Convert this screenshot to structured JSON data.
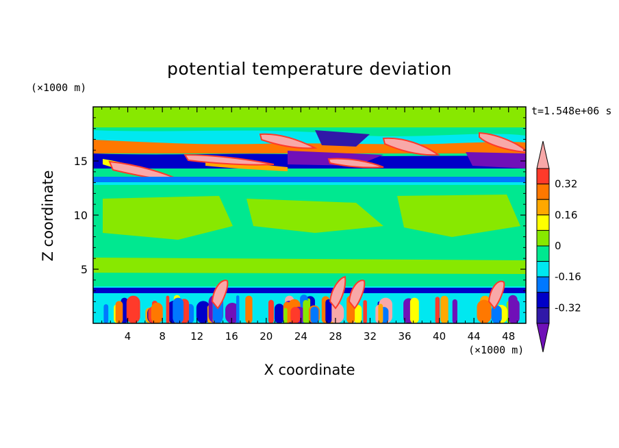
{
  "chart_data": {
    "type": "heatmap",
    "title": "potential temperature deviation",
    "xlabel": "X coordinate",
    "ylabel": "Z coordinate",
    "x_unit": "(×1000 m)",
    "y_unit": "(×1000 m)",
    "time_label": "t=1.548e+06 s",
    "xlim": [
      0,
      50
    ],
    "ylim": [
      0,
      20
    ],
    "x_ticks": [
      4,
      8,
      12,
      16,
      20,
      24,
      28,
      32,
      36,
      40,
      44,
      48
    ],
    "y_ticks": [
      5,
      10,
      15
    ],
    "colorbar": {
      "levels": [
        -0.4,
        -0.32,
        -0.24,
        -0.16,
        -0.08,
        0,
        0.08,
        0.16,
        0.24,
        0.32,
        0.4
      ],
      "labels": [
        "0.32",
        "0.16",
        "0",
        "-0.16",
        "-0.32"
      ],
      "label_values": [
        0.32,
        0.16,
        0,
        -0.16,
        -0.32
      ],
      "colors_top_to_bottom": [
        "#f8a8a8",
        "#ff3a2a",
        "#ff7800",
        "#ffa800",
        "#ffff00",
        "#88e800",
        "#00e890",
        "#00e8f0",
        "#0078ff",
        "#0000c8",
        "#3018a8",
        "#7010b8"
      ],
      "extend": "both"
    },
    "bands": [
      {
        "z": [
          0,
          3.5
        ],
        "value": "mixed",
        "note": "strong alternating positive/negative cells"
      },
      {
        "z": [
          3.5,
          12.8
        ],
        "value": 0.0
      },
      {
        "z": [
          12.8,
          13.6
        ],
        "value": -0.1
      },
      {
        "z": [
          13.6,
          17.5
        ],
        "value": "mixed",
        "note": "alternating positive/negative sloping layers"
      },
      {
        "z": [
          17.5,
          20
        ],
        "value": 0.05
      }
    ]
  }
}
